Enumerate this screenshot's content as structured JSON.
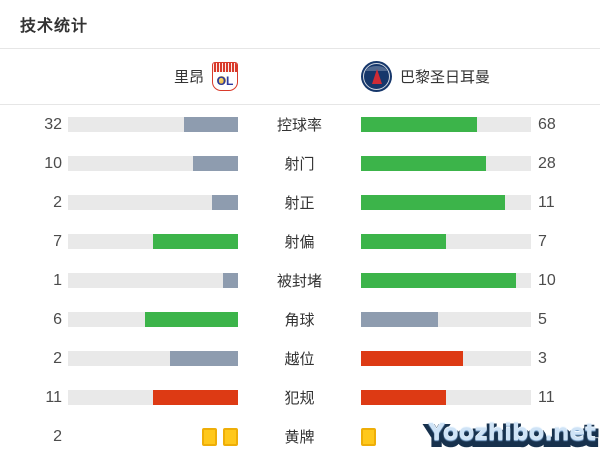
{
  "title": "技术统计",
  "teams": {
    "home": {
      "name": "里昂",
      "logo_text": "OL"
    },
    "away": {
      "name": "巴黎圣日耳曼"
    }
  },
  "stats": [
    {
      "label": "控球率",
      "home": 32,
      "away": 68,
      "home_color": "gray",
      "away_color": "green"
    },
    {
      "label": "射门",
      "home": 10,
      "away": 28,
      "home_color": "gray",
      "away_color": "green"
    },
    {
      "label": "射正",
      "home": 2,
      "away": 11,
      "home_color": "gray",
      "away_color": "green"
    },
    {
      "label": "射偏",
      "home": 7,
      "away": 7,
      "home_color": "green",
      "away_color": "green"
    },
    {
      "label": "被封堵",
      "home": 1,
      "away": 10,
      "home_color": "gray",
      "away_color": "green"
    },
    {
      "label": "角球",
      "home": 6,
      "away": 5,
      "home_color": "green",
      "away_color": "gray"
    },
    {
      "label": "越位",
      "home": 2,
      "away": 3,
      "home_color": "gray",
      "away_color": "red"
    },
    {
      "label": "犯规",
      "home": 11,
      "away": 11,
      "home_color": "red",
      "away_color": "red"
    },
    {
      "label": "黄牌",
      "home": 2,
      "away": 1,
      "type": "cards"
    }
  ],
  "colors": {
    "green": "#3cb44a",
    "gray": "#8e9caf",
    "red": "#dd3a14",
    "yellow": "#ffc81c",
    "yellow_border": "#eeae08",
    "track": "#e9e9e9"
  },
  "watermark": "Yoozhibo.net",
  "chart_data": {
    "type": "bar",
    "title": "技术统计",
    "orientation": "horizontal-paired",
    "categories": [
      "控球率",
      "射门",
      "射正",
      "射偏",
      "被封堵",
      "角球",
      "越位",
      "犯规",
      "黄牌"
    ],
    "series": [
      {
        "name": "里昂",
        "values": [
          32,
          10,
          2,
          7,
          1,
          6,
          2,
          11,
          2
        ]
      },
      {
        "name": "巴黎圣日耳曼",
        "values": [
          68,
          28,
          11,
          7,
          10,
          5,
          3,
          11,
          1
        ]
      }
    ],
    "layout": "each bar fill fraction = value / (home + away); home bars fill right-to-left, away bars fill left-to-right; yellow-card row rendered as card icons instead of bars",
    "legend_position": "top",
    "grid": false
  }
}
